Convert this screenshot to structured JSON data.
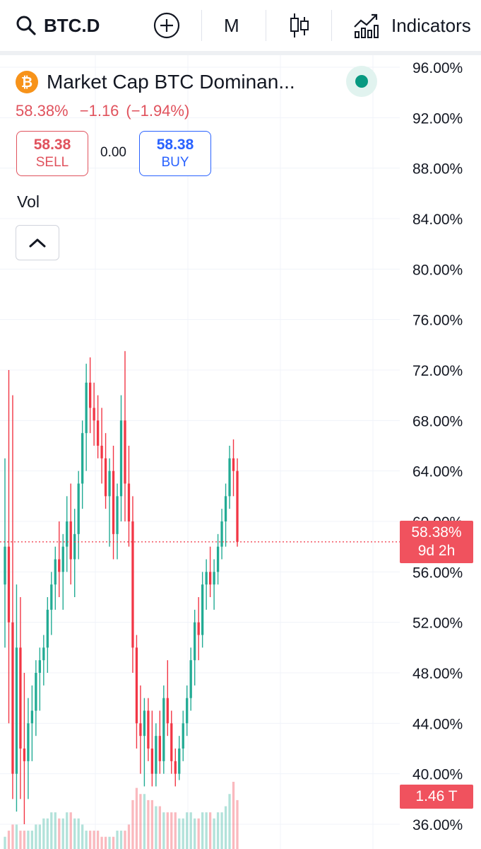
{
  "toolbar": {
    "symbol": "BTC.D",
    "interval": "M",
    "indicators_label": "Indicators",
    "icons": [
      "search-icon",
      "add-circle-icon",
      "candles-icon",
      "indicators-icon"
    ]
  },
  "legend": {
    "title": "Market Cap BTC Dominan...",
    "price": "58.38%",
    "change": "−1.16",
    "change_pct": "(−1.94%)",
    "sell_value": "58.38",
    "sell_label": "SELL",
    "spread": "0.00",
    "buy_value": "58.38",
    "buy_label": "BUY",
    "volume_label": "Vol",
    "status": "market-open"
  },
  "price_tag": {
    "value": "58.38%",
    "countdown": "9d 2h"
  },
  "volume_tag": {
    "value": "1.46 T"
  },
  "colors": {
    "up": "#22ab94",
    "down": "#f23645",
    "grid": "#f0f3fa",
    "price_line": "#f23645",
    "brand": "#f7931a"
  },
  "chart_data": {
    "type": "candlestick",
    "interval": "M",
    "y_axis_labels": [
      "96.00%",
      "92.00%",
      "88.00%",
      "84.00%",
      "80.00%",
      "76.00%",
      "72.00%",
      "68.00%",
      "64.00%",
      "60.00%",
      "56.00%",
      "52.00%",
      "48.00%",
      "44.00%",
      "40.00%",
      "36.00%"
    ],
    "ylim": [
      35.4,
      96.9
    ],
    "last_price": 58.38,
    "grid": true,
    "candles": [
      {
        "o": 55,
        "h": 65,
        "l": 50,
        "c": 58
      },
      {
        "o": 58,
        "h": 72,
        "l": 44,
        "c": 52
      },
      {
        "o": 52,
        "h": 70,
        "l": 38,
        "c": 40
      },
      {
        "o": 40,
        "h": 55,
        "l": 37,
        "c": 50
      },
      {
        "o": 50,
        "h": 54,
        "l": 38,
        "c": 42
      },
      {
        "o": 42,
        "h": 48,
        "l": 36,
        "c": 41
      },
      {
        "o": 41,
        "h": 46,
        "l": 38,
        "c": 44
      },
      {
        "o": 44,
        "h": 47,
        "l": 41,
        "c": 45
      },
      {
        "o": 45,
        "h": 49,
        "l": 43,
        "c": 48
      },
      {
        "o": 48,
        "h": 50,
        "l": 45,
        "c": 49
      },
      {
        "o": 49,
        "h": 51,
        "l": 47,
        "c": 50
      },
      {
        "o": 50,
        "h": 54,
        "l": 48,
        "c": 53
      },
      {
        "o": 53,
        "h": 56,
        "l": 51,
        "c": 55
      },
      {
        "o": 55,
        "h": 58,
        "l": 53,
        "c": 57
      },
      {
        "o": 57,
        "h": 60,
        "l": 54,
        "c": 56
      },
      {
        "o": 56,
        "h": 59,
        "l": 53,
        "c": 58
      },
      {
        "o": 58,
        "h": 62,
        "l": 56,
        "c": 60
      },
      {
        "o": 60,
        "h": 63,
        "l": 55,
        "c": 57
      },
      {
        "o": 57,
        "h": 61,
        "l": 54,
        "c": 59
      },
      {
        "o": 59,
        "h": 64,
        "l": 57,
        "c": 63
      },
      {
        "o": 63,
        "h": 68,
        "l": 61,
        "c": 67
      },
      {
        "o": 67,
        "h": 72.5,
        "l": 64,
        "c": 71
      },
      {
        "o": 71,
        "h": 73,
        "l": 67,
        "c": 69
      },
      {
        "o": 69,
        "h": 71,
        "l": 66,
        "c": 68
      },
      {
        "o": 68,
        "h": 70,
        "l": 65,
        "c": 66
      },
      {
        "o": 66,
        "h": 69,
        "l": 63,
        "c": 65
      },
      {
        "o": 65,
        "h": 67,
        "l": 61,
        "c": 62
      },
      {
        "o": 62,
        "h": 65,
        "l": 58,
        "c": 64
      },
      {
        "o": 64,
        "h": 66,
        "l": 57,
        "c": 59
      },
      {
        "o": 59,
        "h": 63,
        "l": 57,
        "c": 62
      },
      {
        "o": 62,
        "h": 70,
        "l": 60,
        "c": 68
      },
      {
        "o": 68,
        "h": 73.5,
        "l": 60,
        "c": 63
      },
      {
        "o": 63,
        "h": 66,
        "l": 58,
        "c": 60
      },
      {
        "o": 60,
        "h": 62,
        "l": 48,
        "c": 50
      },
      {
        "o": 50,
        "h": 51,
        "l": 42,
        "c": 44
      },
      {
        "o": 44,
        "h": 47,
        "l": 40,
        "c": 43
      },
      {
        "o": 43,
        "h": 46,
        "l": 39,
        "c": 45
      },
      {
        "o": 45,
        "h": 46,
        "l": 41,
        "c": 42
      },
      {
        "o": 42,
        "h": 45,
        "l": 39,
        "c": 40
      },
      {
        "o": 40,
        "h": 44,
        "l": 39,
        "c": 43
      },
      {
        "o": 43,
        "h": 45,
        "l": 40,
        "c": 41
      },
      {
        "o": 41,
        "h": 47,
        "l": 40,
        "c": 46
      },
      {
        "o": 46,
        "h": 49,
        "l": 43,
        "c": 44
      },
      {
        "o": 44,
        "h": 45,
        "l": 40,
        "c": 41
      },
      {
        "o": 41,
        "h": 42,
        "l": 39,
        "c": 40
      },
      {
        "o": 40,
        "h": 43,
        "l": 39.5,
        "c": 42
      },
      {
        "o": 42,
        "h": 45,
        "l": 41,
        "c": 44
      },
      {
        "o": 44,
        "h": 47,
        "l": 43,
        "c": 46
      },
      {
        "o": 46,
        "h": 50,
        "l": 45,
        "c": 49
      },
      {
        "o": 49,
        "h": 53,
        "l": 47,
        "c": 52
      },
      {
        "o": 52,
        "h": 54,
        "l": 49,
        "c": 51
      },
      {
        "o": 51,
        "h": 56,
        "l": 50,
        "c": 55
      },
      {
        "o": 55,
        "h": 57,
        "l": 53,
        "c": 56
      },
      {
        "o": 56,
        "h": 58,
        "l": 54,
        "c": 55
      },
      {
        "o": 55,
        "h": 57,
        "l": 53,
        "c": 56
      },
      {
        "o": 56,
        "h": 59,
        "l": 55,
        "c": 58
      },
      {
        "o": 58,
        "h": 61,
        "l": 57,
        "c": 60
      },
      {
        "o": 60,
        "h": 63,
        "l": 58,
        "c": 62
      },
      {
        "o": 62,
        "h": 66,
        "l": 61,
        "c": 65
      },
      {
        "o": 65,
        "h": 66.5,
        "l": 62,
        "c": 64
      },
      {
        "o": 64,
        "h": 65,
        "l": 58,
        "c": 58.38
      }
    ],
    "volume": [
      2,
      3,
      4,
      4,
      3,
      3,
      3,
      3,
      4,
      4,
      5,
      5,
      6,
      6,
      5,
      5,
      6,
      6,
      5,
      5,
      4,
      3,
      3,
      3,
      3,
      2,
      2,
      2,
      2,
      3,
      3,
      3,
      4,
      8,
      10,
      9,
      9,
      8,
      8,
      7,
      7,
      6,
      6,
      6,
      6,
      5,
      5,
      6,
      6,
      5,
      5,
      6,
      6,
      6,
      5,
      6,
      6,
      7,
      9,
      11,
      8
    ]
  }
}
